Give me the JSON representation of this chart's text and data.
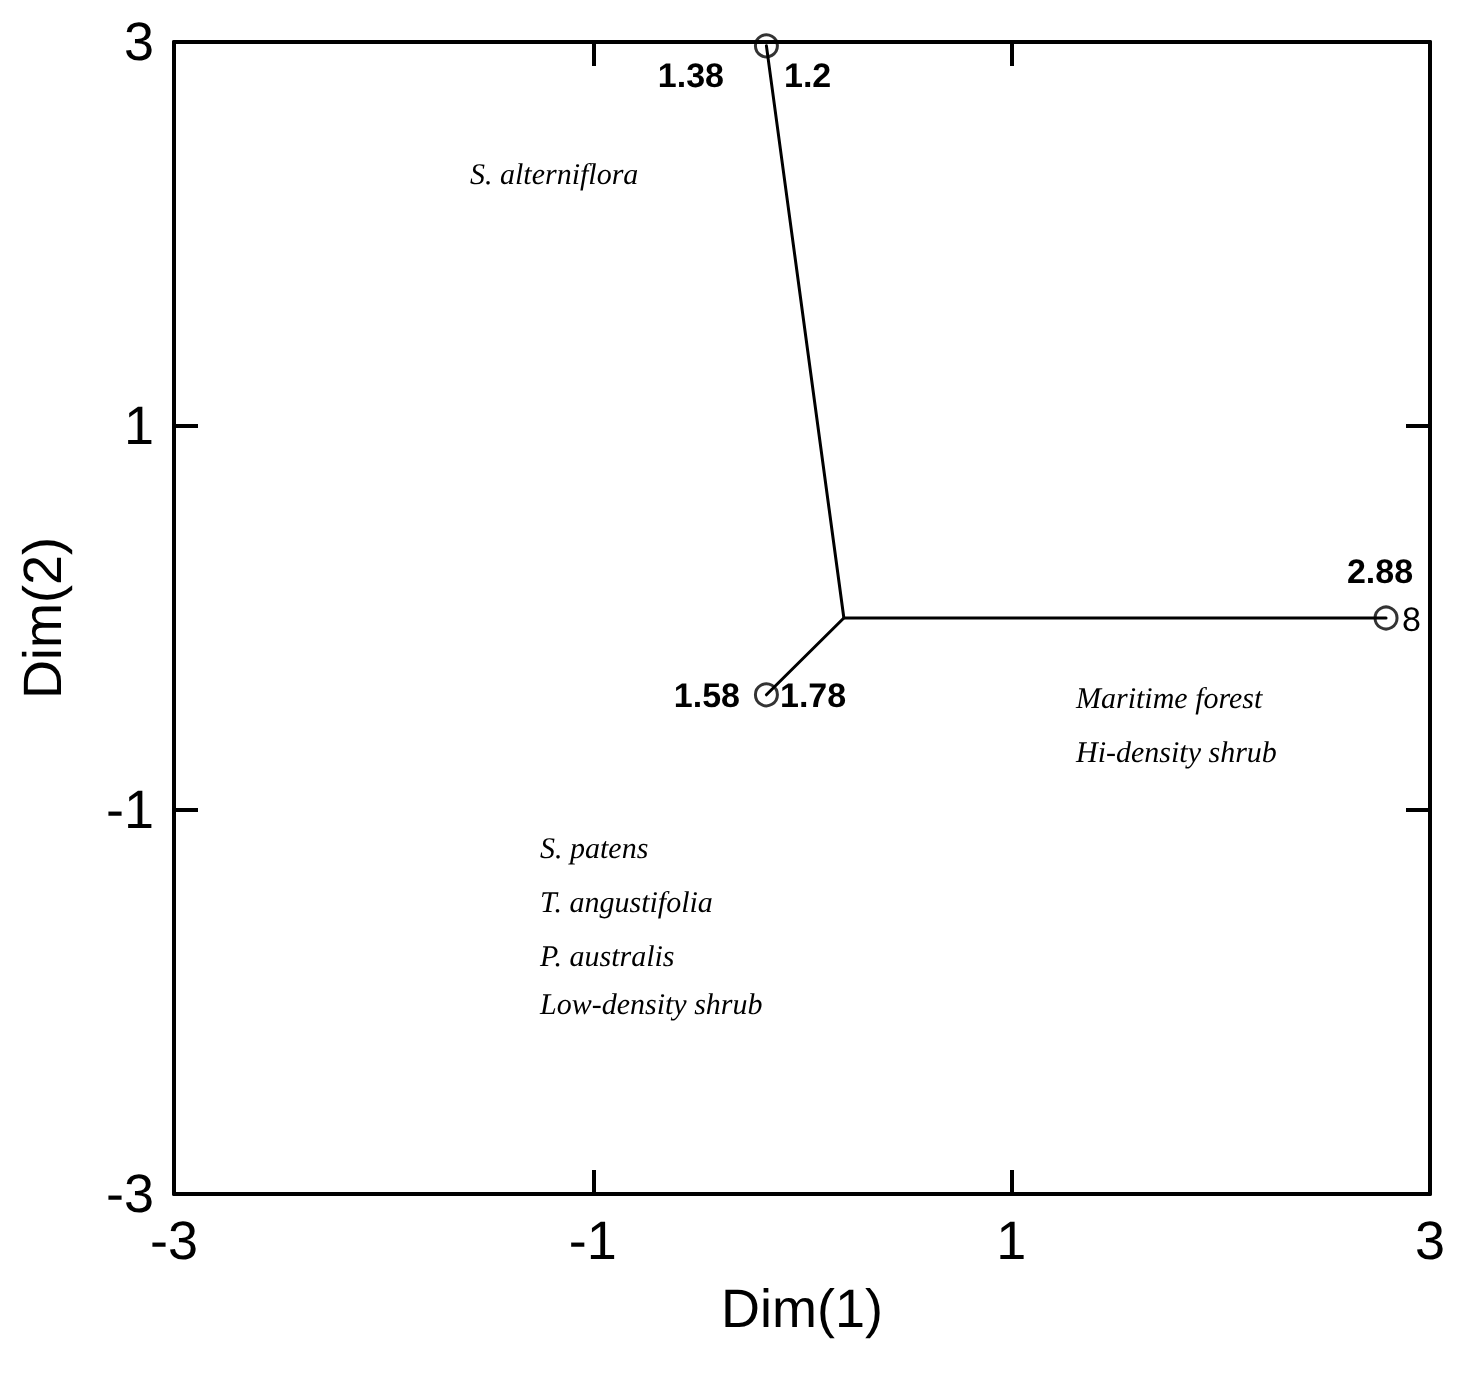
{
  "chart_data": {
    "type": "line",
    "xlabel": "Dim(1)",
    "ylabel": "Dim(2)",
    "xlim": [
      -3,
      3
    ],
    "ylim": [
      -3,
      3
    ],
    "xticks": [
      -3,
      -1,
      1,
      3
    ],
    "yticks": [
      -3,
      -1,
      1,
      3
    ],
    "grid": false,
    "series": [
      {
        "color": "#000000",
        "marker": "none",
        "x": [
          -0.17,
          0.2,
          2.79
        ],
        "values": [
          2.98,
          0.0,
          0.0
        ]
      },
      {
        "color": "#000000",
        "marker": "none",
        "x": [
          0.2,
          -0.17
        ],
        "values": [
          0.0,
          -0.4
        ]
      },
      {
        "type": "scatter",
        "color": "#000000",
        "marker": "circle",
        "x": [
          -0.17,
          -0.17,
          2.79
        ],
        "values": [
          2.98,
          -0.4,
          0.0
        ]
      }
    ],
    "annotations": [
      "1.38",
      "1.2",
      "1.58",
      "1.78",
      "2.88",
      "8",
      "S. alterniflora",
      "S. patens",
      "T. angustifolia",
      "P. australis",
      "Low-density shrub",
      "Maritime forest",
      "Hi-density shrub"
    ]
  }
}
